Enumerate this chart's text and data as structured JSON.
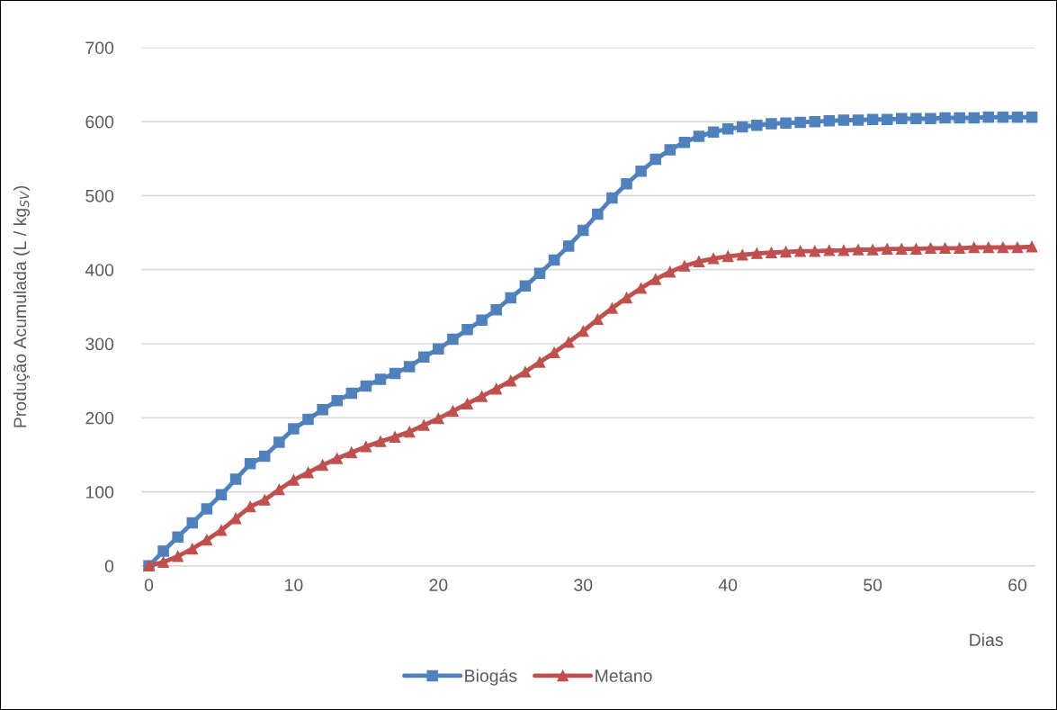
{
  "chart_data": {
    "type": "line",
    "xlabel": "Dias",
    "ylabel": "Produção Acumulada (L / kg$_{SV}$)",
    "x": [
      0,
      1,
      2,
      3,
      4,
      5,
      6,
      7,
      8,
      9,
      10,
      11,
      12,
      13,
      14,
      15,
      16,
      17,
      18,
      19,
      20,
      21,
      22,
      23,
      24,
      25,
      26,
      27,
      28,
      29,
      30,
      31,
      32,
      33,
      34,
      35,
      36,
      37,
      38,
      39,
      40,
      41,
      42,
      43,
      44,
      45,
      46,
      47,
      48,
      49,
      50,
      51,
      52,
      53,
      54,
      55,
      56,
      57,
      58,
      59,
      60,
      61
    ],
    "series": [
      {
        "name": "Biogás",
        "color": "#4f81bd",
        "marker": "square",
        "values": [
          0,
          20,
          39,
          58,
          77,
          96,
          117,
          138,
          148,
          167,
          185,
          198,
          211,
          223,
          233,
          243,
          252,
          260,
          269,
          282,
          293,
          306,
          319,
          332,
          346,
          362,
          378,
          395,
          413,
          432,
          453,
          475,
          497,
          516,
          533,
          549,
          562,
          572,
          580,
          586,
          590,
          593,
          595,
          597,
          598,
          599,
          600,
          601,
          602,
          602,
          603,
          603,
          604,
          604,
          604,
          605,
          605,
          605,
          606,
          606,
          606,
          606
        ]
      },
      {
        "name": "Metano",
        "color": "#c0504d",
        "marker": "triangle",
        "values": [
          0,
          5,
          13,
          23,
          35,
          48,
          64,
          80,
          89,
          103,
          116,
          126,
          136,
          145,
          153,
          161,
          168,
          174,
          181,
          190,
          199,
          209,
          219,
          229,
          239,
          250,
          262,
          275,
          288,
          302,
          317,
          333,
          348,
          362,
          375,
          387,
          397,
          405,
          411,
          415,
          418,
          420,
          422,
          423,
          424,
          425,
          425,
          426,
          426,
          427,
          427,
          428,
          428,
          428,
          429,
          429,
          429,
          430,
          430,
          430,
          430,
          431
        ]
      }
    ],
    "xlim": [
      -0.5,
      61.2
    ],
    "xticks": [
      0,
      10,
      20,
      30,
      40,
      50,
      60
    ],
    "ylim": [
      0,
      700
    ],
    "yticks": [
      0,
      100,
      200,
      300,
      400,
      500,
      600,
      700
    ],
    "grid": "y",
    "legend": "bottom",
    "line_style": "solid"
  }
}
